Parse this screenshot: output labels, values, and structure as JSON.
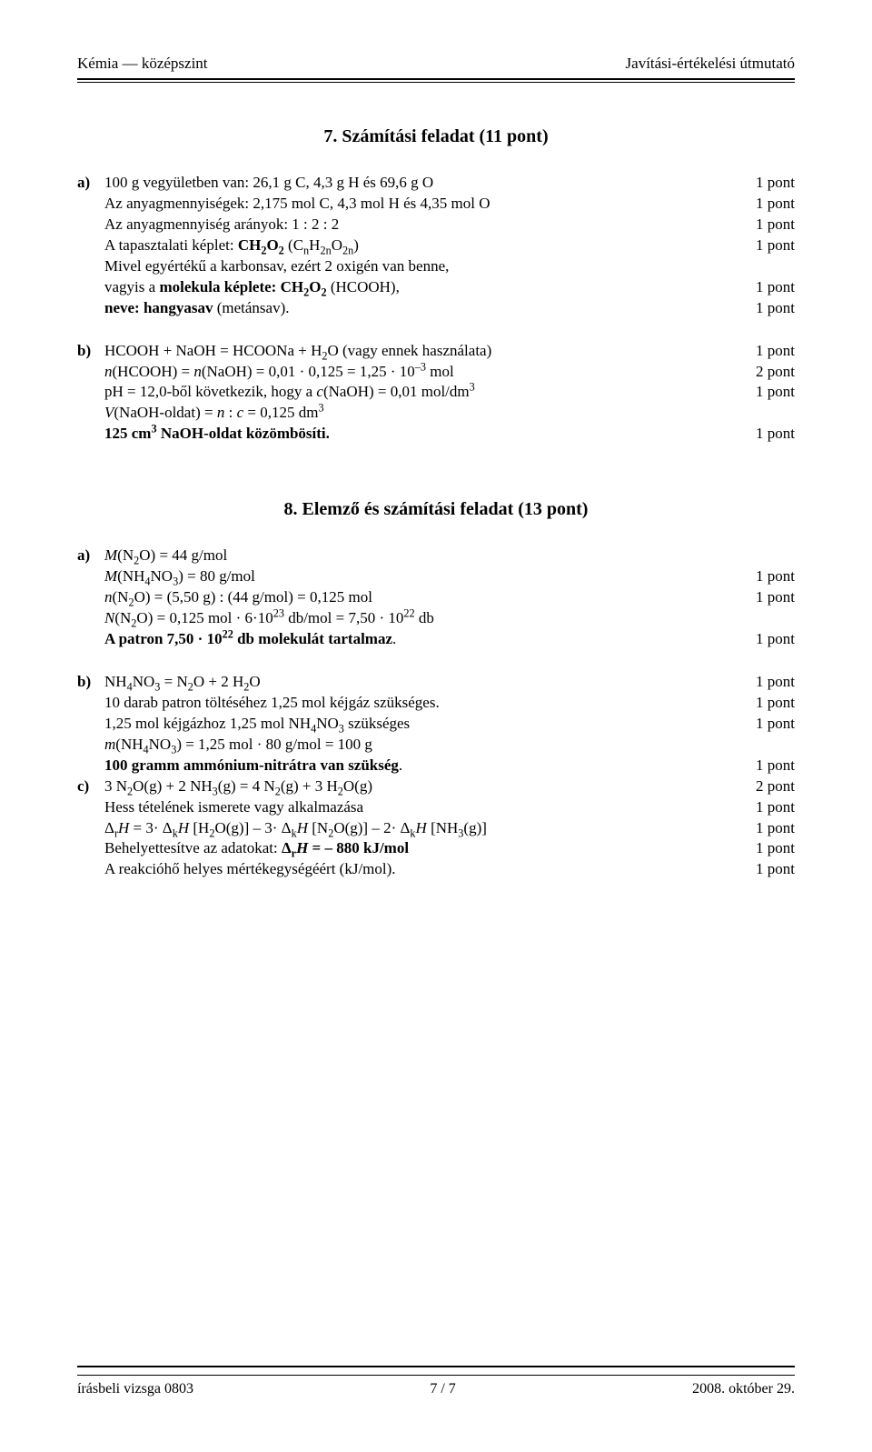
{
  "header": {
    "left": "Kémia — középszint",
    "right": "Javítási-értékelési útmutató"
  },
  "section7": {
    "title": "7. Számítási feladat (11 pont)",
    "a": [
      {
        "text": "100 g vegyületben van: 26,1 g C, 4,3 g H és 69,6 g O",
        "pts": "1 pont"
      },
      {
        "text": "Az anyagmennyiségek: 2,175 mol C, 4,3 mol H és 4,35 mol O",
        "pts": "1 pont"
      },
      {
        "text": "Az anyagmennyiség arányok: 1 : 2 : 2",
        "pts": "1 pont"
      },
      {
        "html": "A tapasztalati képlet: <span class='b'>CH<sub>2</sub>O<sub>2</sub></span> (C<sub>n</sub>H<sub>2n</sub>O<sub>2n</sub>)",
        "pts": "1 pont"
      },
      {
        "text": "Mivel egyértékű a karbonsav, ezért 2 oxigén van benne,",
        "pts": ""
      },
      {
        "html": "vagyis a <span class='b'>molekula képlete: CH<sub>2</sub>O<sub>2</sub></span> (HCOOH),",
        "pts": "1 pont"
      },
      {
        "html": "<span class='b'>neve: hangyasav</span> (metánsav).",
        "pts": "1 pont"
      }
    ],
    "b": [
      {
        "html": "HCOOH + NaOH = HCOONa + H<sub>2</sub>O (vagy ennek használata)",
        "pts": "1 pont"
      },
      {
        "html": "<span class='i'>n</span>(HCOOH) = <span class='i'>n</span>(NaOH) = 0,01 · 0,125 = 1,25 · 10<sup>–3</sup> mol",
        "pts": "2 pont"
      },
      {
        "html": "pH = 12,0-ből következik, hogy a <span class='i'>c</span>(NaOH) = 0,01 mol/dm<sup>3</sup>",
        "pts": "1 pont"
      },
      {
        "html": "<span class='i'>V</span>(NaOH-oldat) = <span class='i'>n</span> : <span class='i'>c</span> = 0,125 dm<sup>3</sup>",
        "pts": ""
      },
      {
        "html": "<span class='b'>125 cm<sup>3</sup> NaOH-oldat közömbösíti.</span>",
        "pts": "1 pont"
      }
    ]
  },
  "section8": {
    "title": "8. Elemző és számítási feladat (13 pont)",
    "a": [
      {
        "html": "<span class='i'>M</span>(N<sub>2</sub>O) = 44 g/mol",
        "pts": ""
      },
      {
        "html": "<span class='i'>M</span>(NH<sub>4</sub>NO<sub>3</sub>) = 80 g/mol",
        "pts": "1 pont"
      },
      {
        "html": "<span class='i'>n</span>(N<sub>2</sub>O) = (5,50 g) : (44 g/mol) = 0,125 mol",
        "pts": "1 pont"
      },
      {
        "html": "<span class='i'>N</span>(N<sub>2</sub>O) = 0,125 mol · 6·10<sup>23</sup> db/mol = 7,50 · 10<sup>22</sup> db",
        "pts": ""
      },
      {
        "html": "<span class='b'>A patron 7,50 · 10<sup>22</sup> db molekulát tartalmaz</span>.",
        "pts": "1 pont"
      }
    ],
    "b": [
      {
        "html": "NH<sub>4</sub>NO<sub>3</sub> = N<sub>2</sub>O + 2 H<sub>2</sub>O",
        "pts": "1 pont"
      },
      {
        "text": "10 darab patron töltéséhez 1,25 mol kéjgáz szükséges.",
        "pts": "1 pont"
      },
      {
        "html": "1,25 mol kéjgázhoz 1,25 mol NH<sub>4</sub>NO<sub>3</sub> szükséges",
        "pts": "1 pont"
      },
      {
        "html": "<span class='i'>m</span>(NH<sub>4</sub>NO<sub>3</sub>) = 1,25 mol · 80 g/mol = 100 g",
        "pts": ""
      },
      {
        "html": "<span class='b'>100 gramm ammónium-nitrátra van szükség</span>.",
        "pts": "1 pont"
      }
    ],
    "c": [
      {
        "html": "3 N<sub>2</sub>O(g) + 2 NH<sub>3</sub>(g)  = 4 N<sub>2</sub>(g) + 3 H<sub>2</sub>O(g)",
        "pts": "2 pont"
      },
      {
        "text": "Hess tételének ismerete vagy alkalmazása",
        "pts": "1 pont"
      },
      {
        "html": "Δ<sub>r</sub><span class='i'>H</span> =  3·&nbsp;Δ<sub>k</sub><span class='i'>H</span> [H<sub>2</sub>O(g)] – 3·&nbsp;Δ<sub>k</sub><span class='i'>H</span> [N<sub>2</sub>O(g)] – 2·&nbsp;Δ<sub>k</sub><span class='i'>H</span> [NH<sub>3</sub>(g)]",
        "pts": "1 pont"
      },
      {
        "html": "Behelyettesítve az adatokat: <span class='b'>Δ<sub>r</sub><span class='i'>H</span> = – 880 kJ/mol</span>",
        "pts": "1 pont"
      },
      {
        "text": "A reakcióhő helyes mértékegységéért (kJ/mol).",
        "pts": "1 pont"
      }
    ]
  },
  "footer": {
    "left": "írásbeli vizsga 0803",
    "center": "7 / 7",
    "right": "2008. október 29."
  }
}
